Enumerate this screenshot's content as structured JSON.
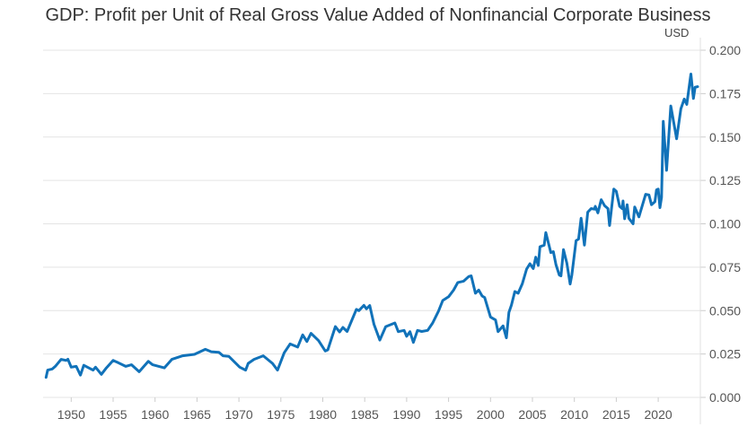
{
  "chart_data": {
    "type": "line",
    "title": "GDP: Profit per Unit of Real Gross Value Added of Nonfinancial Corporate Business",
    "ylabel": "USD",
    "xlabel": "",
    "xlim": [
      1947,
      2024.75
    ],
    "ylim": [
      0,
      0.2
    ],
    "y_axis_position": "right",
    "grid": true,
    "line_color": "#1172b9",
    "x_ticks": [
      "1950",
      "1955",
      "1960",
      "1965",
      "1970",
      "1975",
      "1980",
      "1985",
      "1990",
      "1995",
      "2000",
      "2005",
      "2010",
      "2015",
      "2020"
    ],
    "y_ticks": [
      "0.000",
      "0.025",
      "0.050",
      "0.075",
      "0.100",
      "0.125",
      "0.150",
      "0.175",
      "0.200"
    ],
    "series": [
      {
        "points": [
          [
            1947.0,
            0.0115
          ],
          [
            1947.2,
            0.0157
          ],
          [
            1947.75,
            0.0164
          ],
          [
            1948.1,
            0.0179
          ],
          [
            1948.8,
            0.0219
          ],
          [
            1949.4,
            0.0213
          ],
          [
            1949.6,
            0.022
          ],
          [
            1950.0,
            0.0174
          ],
          [
            1950.6,
            0.0179
          ],
          [
            1951.1,
            0.0128
          ],
          [
            1951.5,
            0.0185
          ],
          [
            1952.6,
            0.0157
          ],
          [
            1952.9,
            0.0174
          ],
          [
            1953.6,
            0.0133
          ],
          [
            1954.2,
            0.017
          ],
          [
            1955.0,
            0.0213
          ],
          [
            1955.6,
            0.02
          ],
          [
            1956.5,
            0.0179
          ],
          [
            1957.2,
            0.0188
          ],
          [
            1958.1,
            0.0148
          ],
          [
            1959.2,
            0.0208
          ],
          [
            1959.7,
            0.0188
          ],
          [
            1961.1,
            0.017
          ],
          [
            1962.0,
            0.0219
          ],
          [
            1963.3,
            0.024
          ],
          [
            1964.7,
            0.0248
          ],
          [
            1966.0,
            0.0277
          ],
          [
            1966.7,
            0.0263
          ],
          [
            1967.6,
            0.026
          ],
          [
            1968.1,
            0.024
          ],
          [
            1968.8,
            0.0236
          ],
          [
            1970.1,
            0.0174
          ],
          [
            1970.8,
            0.0157
          ],
          [
            1971.1,
            0.0196
          ],
          [
            1971.8,
            0.0219
          ],
          [
            1972.9,
            0.024
          ],
          [
            1974.0,
            0.0196
          ],
          [
            1974.6,
            0.0157
          ],
          [
            1975.4,
            0.0257
          ],
          [
            1976.1,
            0.0308
          ],
          [
            1977.0,
            0.029
          ],
          [
            1977.6,
            0.036
          ],
          [
            1978.1,
            0.0322
          ],
          [
            1978.6,
            0.0369
          ],
          [
            1979.5,
            0.0327
          ],
          [
            1980.3,
            0.0267
          ],
          [
            1980.6,
            0.0274
          ],
          [
            1981.5,
            0.0408
          ],
          [
            1982.0,
            0.0377
          ],
          [
            1982.4,
            0.0403
          ],
          [
            1982.9,
            0.038
          ],
          [
            1984.0,
            0.0507
          ],
          [
            1984.3,
            0.05
          ],
          [
            1984.9,
            0.053
          ],
          [
            1985.2,
            0.051
          ],
          [
            1985.6,
            0.0529
          ],
          [
            1986.1,
            0.0421
          ],
          [
            1986.8,
            0.033
          ],
          [
            1987.5,
            0.0408
          ],
          [
            1988.6,
            0.0429
          ],
          [
            1989.0,
            0.0379
          ],
          [
            1989.7,
            0.0386
          ],
          [
            1990.0,
            0.0352
          ],
          [
            1990.4,
            0.0379
          ],
          [
            1990.8,
            0.0317
          ],
          [
            1991.3,
            0.0386
          ],
          [
            1991.8,
            0.038
          ],
          [
            1992.5,
            0.0386
          ],
          [
            1993.1,
            0.0429
          ],
          [
            1993.8,
            0.0497
          ],
          [
            1994.3,
            0.0558
          ],
          [
            1995.0,
            0.058
          ],
          [
            1995.6,
            0.0618
          ],
          [
            1996.1,
            0.0662
          ],
          [
            1996.8,
            0.067
          ],
          [
            1997.4,
            0.0696
          ],
          [
            1997.7,
            0.07
          ],
          [
            1998.2,
            0.06
          ],
          [
            1998.6,
            0.0618
          ],
          [
            1999.0,
            0.0584
          ],
          [
            1999.3,
            0.0575
          ],
          [
            2000.0,
            0.0463
          ],
          [
            2000.6,
            0.0446
          ],
          [
            2000.9,
            0.0379
          ],
          [
            2001.5,
            0.0412
          ],
          [
            2001.9,
            0.0343
          ],
          [
            2002.2,
            0.049
          ],
          [
            2002.5,
            0.0532
          ],
          [
            2002.9,
            0.061
          ],
          [
            2003.3,
            0.06
          ],
          [
            2003.8,
            0.0656
          ],
          [
            2004.3,
            0.0739
          ],
          [
            2004.7,
            0.077
          ],
          [
            2005.1,
            0.0742
          ],
          [
            2005.4,
            0.0808
          ],
          [
            2005.7,
            0.076
          ],
          [
            2005.9,
            0.0868
          ],
          [
            2006.4,
            0.0877
          ],
          [
            2006.6,
            0.095
          ],
          [
            2007.2,
            0.0834
          ],
          [
            2007.5,
            0.084
          ],
          [
            2007.8,
            0.0765
          ],
          [
            2008.2,
            0.0705
          ],
          [
            2008.4,
            0.07
          ],
          [
            2008.7,
            0.0851
          ],
          [
            2009.1,
            0.0774
          ],
          [
            2009.5,
            0.0653
          ],
          [
            2009.7,
            0.0705
          ],
          [
            2010.2,
            0.0903
          ],
          [
            2010.5,
            0.0912
          ],
          [
            2010.8,
            0.1032
          ],
          [
            2010.9,
            0.0998
          ],
          [
            2011.2,
            0.0877
          ],
          [
            2011.6,
            0.1067
          ],
          [
            2012.0,
            0.1088
          ],
          [
            2012.4,
            0.1084
          ],
          [
            2012.5,
            0.1101
          ],
          [
            2012.8,
            0.1063
          ],
          [
            2013.2,
            0.1139
          ],
          [
            2013.6,
            0.1105
          ],
          [
            2014.0,
            0.1088
          ],
          [
            2014.2,
            0.099
          ],
          [
            2014.7,
            0.12
          ],
          [
            2015.0,
            0.1187
          ],
          [
            2015.4,
            0.1101
          ],
          [
            2015.7,
            0.1088
          ],
          [
            2015.8,
            0.1132
          ],
          [
            2016.0,
            0.1029
          ],
          [
            2016.3,
            0.111
          ],
          [
            2016.5,
            0.1032
          ],
          [
            2017.0,
            0.1
          ],
          [
            2017.2,
            0.1097
          ],
          [
            2017.7,
            0.104
          ],
          [
            2018.5,
            0.117
          ],
          [
            2018.9,
            0.1166
          ],
          [
            2019.2,
            0.111
          ],
          [
            2019.6,
            0.1127
          ],
          [
            2019.8,
            0.1196
          ],
          [
            2020.0,
            0.12
          ],
          [
            2020.2,
            0.1093
          ],
          [
            2020.4,
            0.1153
          ],
          [
            2020.6,
            0.159
          ],
          [
            2021.0,
            0.1308
          ],
          [
            2021.5,
            0.1679
          ],
          [
            2022.2,
            0.149
          ],
          [
            2022.7,
            0.1662
          ],
          [
            2023.1,
            0.1719
          ],
          [
            2023.4,
            0.1688
          ],
          [
            2023.9,
            0.1863
          ],
          [
            2024.2,
            0.1722
          ],
          [
            2024.4,
            0.1787
          ],
          [
            2024.7,
            0.179
          ]
        ]
      }
    ]
  }
}
